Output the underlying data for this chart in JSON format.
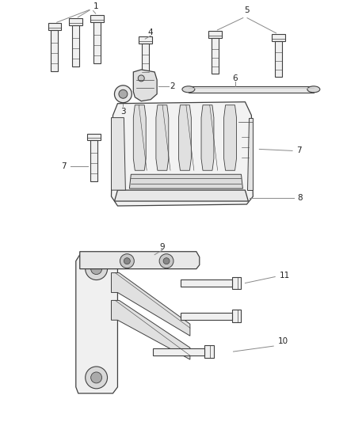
{
  "background_color": "#ffffff",
  "fig_width": 4.38,
  "fig_height": 5.33,
  "dpi": 100,
  "line_color": "#404040",
  "text_color": "#222222",
  "leader_color": "#888888",
  "font_size": 7.5
}
